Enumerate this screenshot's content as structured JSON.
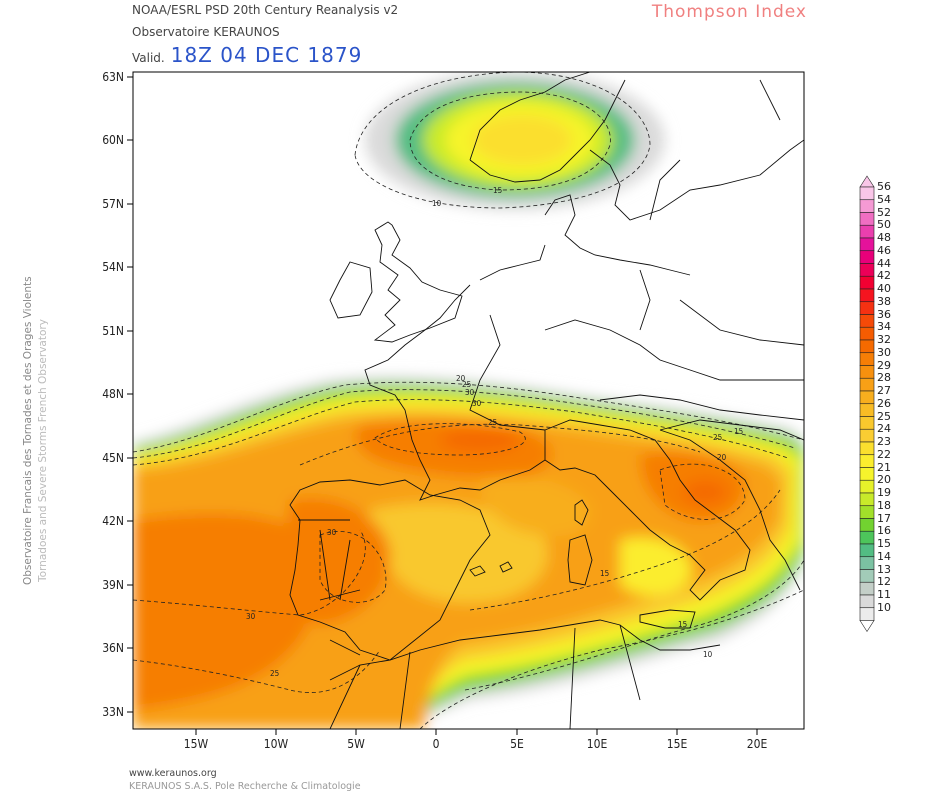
{
  "header": {
    "line1": "NOAA/ESRL PSD 20th Century Reanalysis v2",
    "line2": "Observatoire KERAUNOS",
    "valid_prefix": "Valid.",
    "valid_time": "18Z 04 DEC 1879",
    "index_title": "Thompson Index"
  },
  "side_text": {
    "line1": "Observatoire Francais des Tornades et des Orages Violents",
    "line2": "Tornadoes and Severe Storms French Observatory"
  },
  "footer": {
    "line1": "www.keraunos.org",
    "line2": "KERAUNOS S.A.S. Pole Recherche & Climatologie"
  },
  "axes": {
    "lat_labels": [
      "63N",
      "60N",
      "57N",
      "54N",
      "51N",
      "48N",
      "45N",
      "42N",
      "39N",
      "36N",
      "33N"
    ],
    "lon_labels": [
      "15W",
      "10W",
      "5W",
      "0",
      "5E",
      "10E",
      "15E",
      "20E"
    ]
  },
  "contour_labels": [
    "10",
    "15",
    "20",
    "25",
    "30",
    "30",
    "25",
    "25",
    "20",
    "15",
    "10",
    "15",
    "10",
    "10",
    "15",
    "25",
    "30",
    "30",
    "25",
    "25",
    "15",
    "10"
  ],
  "colorbar": {
    "levels": [
      "56",
      "54",
      "52",
      "50",
      "48",
      "46",
      "44",
      "42",
      "40",
      "38",
      "36",
      "34",
      "32",
      "30",
      "29",
      "28",
      "27",
      "26",
      "25",
      "24",
      "23",
      "22",
      "21",
      "20",
      "19",
      "18",
      "17",
      "16",
      "15",
      "14",
      "13",
      "12",
      "11",
      "10"
    ],
    "colors": [
      "#f9c6e8",
      "#f59ad4",
      "#f06ec2",
      "#ea3fae",
      "#e5129b",
      "#e8007a",
      "#ec0058",
      "#f20032",
      "#f5141f",
      "#f53112",
      "#f54a08",
      "#f55c02",
      "#f56a00",
      "#f67e06",
      "#f7900e",
      "#f8a016",
      "#f8ae1e",
      "#f9bc25",
      "#f9c82d",
      "#facd33",
      "#fbdf2e",
      "#fbed2e",
      "#f6f42c",
      "#e6f12a",
      "#c8ea2a",
      "#a2e02a",
      "#72d230",
      "#4dc55b",
      "#52bd83",
      "#7bc2a2",
      "#a2cbb8",
      "#c4cfc8",
      "#dadada",
      "#ececec"
    ]
  }
}
